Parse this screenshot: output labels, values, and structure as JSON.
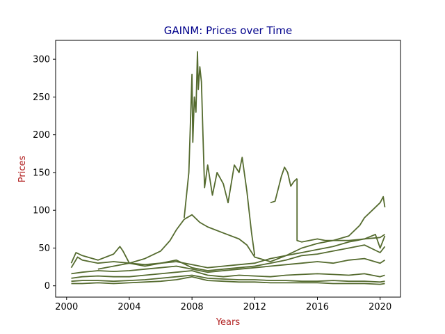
{
  "chart_data": {
    "type": "line",
    "title": "GAINM: Prices over Time",
    "xlabel": "Years",
    "ylabel": "Prices",
    "title_color": "#00008b",
    "label_color": "#b22222",
    "line_color": "#556b2f",
    "xlim": [
      1999.3,
      2021.3
    ],
    "ylim": [
      -15,
      325
    ],
    "xticks": [
      2000,
      2004,
      2008,
      2012,
      2016,
      2020
    ],
    "yticks": [
      0,
      50,
      100,
      150,
      200,
      250,
      300
    ],
    "grid": false,
    "series": [
      {
        "x": [
          2000.3,
          2001,
          2002,
          2003,
          2004,
          2005,
          2006,
          2007,
          2008,
          2009,
          2010,
          2011,
          2012,
          2013,
          2014,
          2015,
          2016,
          2017,
          2018,
          2019,
          2020,
          2020.3
        ],
        "y": [
          3,
          3,
          4,
          3,
          4,
          5,
          6,
          8,
          12,
          7,
          6,
          5,
          5,
          4,
          4,
          4,
          4,
          3,
          3,
          3,
          2,
          3
        ]
      },
      {
        "x": [
          2000.3,
          2001,
          2002,
          2003,
          2004,
          2005,
          2006,
          2007,
          2008,
          2009,
          2010,
          2011,
          2012,
          2013,
          2014,
          2015,
          2016,
          2017,
          2018,
          2019,
          2020,
          2020.3
        ],
        "y": [
          6,
          7,
          7,
          6,
          7,
          8,
          10,
          12,
          14,
          10,
          9,
          8,
          8,
          7,
          7,
          6,
          6,
          7,
          6,
          6,
          5,
          6
        ]
      },
      {
        "x": [
          2000.3,
          2001,
          2002,
          2003,
          2004,
          2005,
          2006,
          2007,
          2008,
          2009,
          2010,
          2011,
          2012,
          2013,
          2014,
          2015,
          2016,
          2017,
          2018,
          2019,
          2020,
          2020.3
        ],
        "y": [
          10,
          12,
          13,
          12,
          12,
          14,
          16,
          18,
          20,
          14,
          12,
          14,
          13,
          12,
          14,
          15,
          16,
          15,
          14,
          16,
          12,
          14
        ]
      },
      {
        "x": [
          2000.3,
          2001,
          2002,
          2003,
          2004,
          2005,
          2006,
          2007,
          2008,
          2009,
          2010,
          2011,
          2012,
          2013,
          2014,
          2015,
          2016,
          2017,
          2018,
          2019,
          2020,
          2020.3
        ],
        "y": [
          16,
          18,
          20,
          19,
          20,
          22,
          24,
          26,
          22,
          18,
          20,
          22,
          24,
          26,
          28,
          30,
          32,
          30,
          34,
          36,
          30,
          34
        ]
      },
      {
        "x": [
          2000.3,
          2000.7,
          2001,
          2002,
          2003,
          2004,
          2005,
          2006,
          2007,
          2008,
          2009,
          2010,
          2011,
          2012,
          2013,
          2014,
          2015,
          2016,
          2017,
          2018,
          2019,
          2020,
          2020.3
        ],
        "y": [
          24,
          38,
          34,
          30,
          32,
          30,
          28,
          30,
          34,
          24,
          20,
          22,
          24,
          26,
          30,
          34,
          40,
          42,
          46,
          50,
          54,
          44,
          52
        ]
      },
      {
        "x": [
          2000.3,
          2000.6,
          2001,
          2002,
          2003,
          2003.4,
          2003.6,
          2004,
          2005,
          2006,
          2007,
          2008,
          2009,
          2010,
          2011,
          2012,
          2013,
          2014,
          2015,
          2016,
          2017,
          2018,
          2019,
          2019.7,
          2020,
          2020.3
        ],
        "y": [
          30,
          44,
          40,
          34,
          42,
          52,
          46,
          30,
          26,
          30,
          32,
          28,
          24,
          26,
          28,
          30,
          36,
          40,
          44,
          48,
          52,
          58,
          62,
          68,
          50,
          66
        ]
      },
      {
        "x": [
          2002,
          2003,
          2004,
          2005,
          2006,
          2006.6,
          2007,
          2007.5,
          2008,
          2008.5,
          2009,
          2010,
          2011,
          2011.5,
          2012,
          2013,
          2014,
          2015,
          2016,
          2017,
          2018,
          2018.7,
          2019,
          2019.5,
          2020,
          2020.2,
          2020.3
        ],
        "y": [
          22,
          26,
          30,
          36,
          46,
          60,
          74,
          88,
          94,
          84,
          78,
          70,
          62,
          54,
          38,
          32,
          40,
          50,
          56,
          60,
          66,
          80,
          90,
          100,
          110,
          118,
          104
        ]
      },
      {
        "x": [
          2007.5,
          2007.8,
          2008,
          2008.05,
          2008.15,
          2008.25,
          2008.35,
          2008.4,
          2008.5,
          2008.6,
          2008.7,
          2008.8,
          2009,
          2009.3,
          2009.6,
          2010,
          2010.3,
          2010.7,
          2011,
          2011.2,
          2011.5,
          2011.8,
          2012
        ],
        "y": [
          90,
          150,
          280,
          190,
          250,
          230,
          310,
          260,
          290,
          270,
          200,
          130,
          160,
          120,
          150,
          135,
          110,
          160,
          150,
          170,
          125,
          70,
          40
        ]
      },
      {
        "x": [
          2013,
          2013.3,
          2013.7,
          2013.9,
          2014.1,
          2014.3,
          2014.5,
          2014.7
        ],
        "y": [
          110,
          112,
          145,
          157,
          150,
          132,
          138,
          142
        ]
      },
      {
        "x": [
          2014.7,
          2014.7,
          2015,
          2016,
          2016.5,
          2017,
          2018,
          2019,
          2020,
          2020.3
        ],
        "y": [
          142,
          60,
          58,
          62,
          60,
          60,
          60,
          62,
          64,
          68
        ]
      }
    ]
  }
}
